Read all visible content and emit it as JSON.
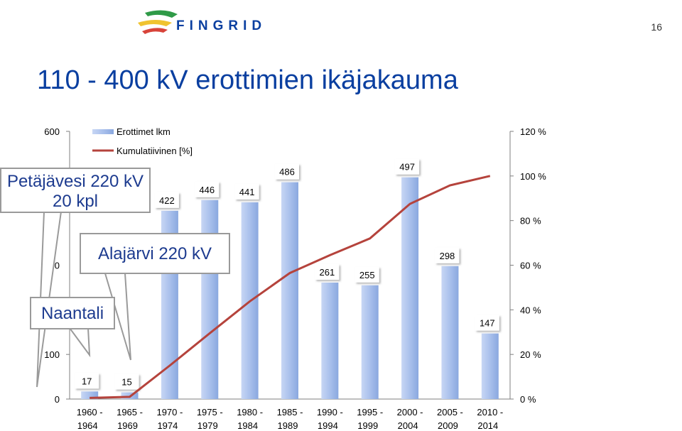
{
  "header": {
    "logo_text": "FINGRID",
    "page_number": "16",
    "title": "110 - 400 kV erottimien ikäjakauma"
  },
  "colors": {
    "bar": "#a9c0ec",
    "bar_dark": "#7f9fd9",
    "line": "#b5433c",
    "title": "#0a3fa0",
    "logo_green": "#2f9a47",
    "logo_yellow": "#f0c330",
    "logo_red": "#d8433a",
    "logo_blue": "#0a3fa0"
  },
  "chart_data": {
    "type": "bar",
    "categories": [
      [
        "1960 -",
        "1964"
      ],
      [
        "1965 -",
        "1969"
      ],
      [
        "1970 -",
        "1974"
      ],
      [
        "1975 -",
        "1979"
      ],
      [
        "1980 -",
        "1984"
      ],
      [
        "1985 -",
        "1989"
      ],
      [
        "1990 -",
        "1994"
      ],
      [
        "1995 -",
        "1999"
      ],
      [
        "2000 -",
        "2004"
      ],
      [
        "2005 -",
        "2009"
      ],
      [
        "2010 -",
        "2014"
      ]
    ],
    "series": [
      {
        "name": "Erottimet lkm",
        "type": "bar",
        "axis": "left",
        "values": [
          17,
          15,
          422,
          446,
          441,
          486,
          261,
          255,
          497,
          298,
          147
        ],
        "labels": [
          "17",
          "15",
          "422",
          "446",
          "441",
          "486",
          "261",
          "255",
          "497",
          "298",
          "147"
        ]
      },
      {
        "name": "Kumulatiivinen [%]",
        "type": "line",
        "axis": "right",
        "values": [
          0.5,
          1.0,
          15.0,
          29.5,
          43.8,
          56.5,
          64.5,
          72.0,
          87.5,
          95.8,
          100.0
        ]
      }
    ],
    "y_left": {
      "ylim": [
        0,
        600
      ],
      "ticks": [
        0,
        100,
        600
      ],
      "tick_labels": [
        "0",
        "100",
        "600"
      ]
    },
    "y_left_partial_tick": {
      "value": 300,
      "label": "0"
    },
    "y_right": {
      "ylim": [
        0,
        120
      ],
      "ticks": [
        0,
        20,
        40,
        60,
        80,
        100,
        120
      ],
      "tick_labels": [
        "0 %",
        "20 %",
        "40 %",
        "60 %",
        "80 %",
        "100 %",
        "120 %"
      ]
    },
    "legend": {
      "placement": "top-left"
    },
    "grid": false
  },
  "callouts": [
    {
      "id": "petajavesi",
      "lines": [
        "Petäjävesi 220 kV",
        "20 kpl"
      ]
    },
    {
      "id": "alajarvi",
      "lines": [
        "Alajärvi 220 kV"
      ]
    },
    {
      "id": "naantali",
      "lines": [
        "Naantali"
      ]
    }
  ]
}
